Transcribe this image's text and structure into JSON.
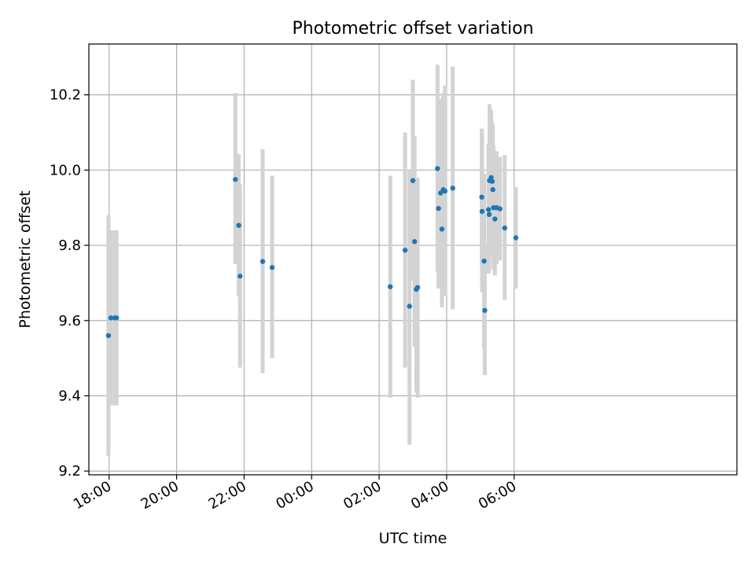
{
  "chart_data": {
    "type": "scatter",
    "title": "Photometric offset variation",
    "xlabel": "UTC time",
    "ylabel": "Photometric offset",
    "x_unit": "hours since 18:00 UTC",
    "xlim": [
      -0.6,
      18.6
    ],
    "ylim": [
      9.19,
      10.335
    ],
    "grid": true,
    "colors": {
      "points": "#1f77b4",
      "errorbars": "#d3d3d3",
      "grid": "#b0b0b0",
      "axes": "#000000"
    },
    "x_ticks": [
      {
        "value": 0,
        "label": "18:00"
      },
      {
        "value": 2,
        "label": "20:00"
      },
      {
        "value": 4,
        "label": "22:00"
      },
      {
        "value": 6,
        "label": "00:00"
      },
      {
        "value": 8,
        "label": "02:00"
      },
      {
        "value": 10,
        "label": "04:00"
      },
      {
        "value": 12,
        "label": "06:00"
      }
    ],
    "y_ticks": [
      {
        "value": 9.2,
        "label": "9.2"
      },
      {
        "value": 9.4,
        "label": "9.4"
      },
      {
        "value": 9.6,
        "label": "9.6"
      },
      {
        "value": 9.8,
        "label": "9.8"
      },
      {
        "value": 10.0,
        "label": "10.0"
      },
      {
        "value": 10.2,
        "label": "10.2"
      }
    ],
    "points": [
      {
        "x": -0.02,
        "y": 9.56,
        "lo": 9.24,
        "hi": 9.88
      },
      {
        "x": 0.05,
        "y": 9.607,
        "lo": 9.375,
        "hi": 9.84
      },
      {
        "x": 0.17,
        "y": 9.607,
        "lo": 9.375,
        "hi": 9.84
      },
      {
        "x": 0.22,
        "y": 9.607,
        "lo": 9.375,
        "hi": 9.84
      },
      {
        "x": 3.74,
        "y": 9.975,
        "lo": 9.75,
        "hi": 10.205
      },
      {
        "x": 3.84,
        "y": 9.853,
        "lo": 9.665,
        "hi": 10.042
      },
      {
        "x": 3.88,
        "y": 9.718,
        "lo": 9.475,
        "hi": 9.962
      },
      {
        "x": 4.55,
        "y": 9.757,
        "lo": 9.46,
        "hi": 10.055
      },
      {
        "x": 4.83,
        "y": 9.741,
        "lo": 9.5,
        "hi": 9.985
      },
      {
        "x": 8.33,
        "y": 9.69,
        "lo": 9.395,
        "hi": 9.985
      },
      {
        "x": 8.77,
        "y": 9.787,
        "lo": 9.475,
        "hi": 10.1
      },
      {
        "x": 8.9,
        "y": 9.638,
        "lo": 9.27,
        "hi": 10.0
      },
      {
        "x": 9.0,
        "y": 9.972,
        "lo": 9.705,
        "hi": 10.24
      },
      {
        "x": 9.05,
        "y": 9.81,
        "lo": 9.53,
        "hi": 10.09
      },
      {
        "x": 9.1,
        "y": 9.683,
        "lo": 9.41,
        "hi": 9.965
      },
      {
        "x": 9.14,
        "y": 9.688,
        "lo": 9.395,
        "hi": 9.98
      },
      {
        "x": 9.73,
        "y": 10.004,
        "lo": 9.73,
        "hi": 10.28
      },
      {
        "x": 9.76,
        "y": 9.898,
        "lo": 9.685,
        "hi": 10.115
      },
      {
        "x": 9.82,
        "y": 9.939,
        "lo": 9.69,
        "hi": 10.19
      },
      {
        "x": 9.86,
        "y": 9.843,
        "lo": 9.635,
        "hi": 10.05
      },
      {
        "x": 9.9,
        "y": 9.948,
        "lo": 9.69,
        "hi": 10.205
      },
      {
        "x": 9.95,
        "y": 9.944,
        "lo": 9.665,
        "hi": 10.225
      },
      {
        "x": 10.18,
        "y": 9.952,
        "lo": 9.63,
        "hi": 10.275
      },
      {
        "x": 11.04,
        "y": 9.928,
        "lo": 9.745,
        "hi": 10.11
      },
      {
        "x": 11.05,
        "y": 9.89,
        "lo": 9.675,
        "hi": 10.1
      },
      {
        "x": 11.11,
        "y": 9.758,
        "lo": 9.525,
        "hi": 9.99
      },
      {
        "x": 11.13,
        "y": 9.627,
        "lo": 9.455,
        "hi": 9.8
      },
      {
        "x": 11.24,
        "y": 9.895,
        "lo": 9.725,
        "hi": 10.07
      },
      {
        "x": 11.26,
        "y": 9.882,
        "lo": 9.73,
        "hi": 10.035
      },
      {
        "x": 11.27,
        "y": 9.972,
        "lo": 9.77,
        "hi": 10.175
      },
      {
        "x": 11.32,
        "y": 9.98,
        "lo": 9.805,
        "hi": 10.16
      },
      {
        "x": 11.35,
        "y": 9.97,
        "lo": 9.81,
        "hi": 10.13
      },
      {
        "x": 11.37,
        "y": 9.948,
        "lo": 9.775,
        "hi": 10.12
      },
      {
        "x": 11.39,
        "y": 9.9,
        "lo": 9.735,
        "hi": 10.065
      },
      {
        "x": 11.43,
        "y": 9.87,
        "lo": 9.72,
        "hi": 10.03
      },
      {
        "x": 11.48,
        "y": 9.9,
        "lo": 9.75,
        "hi": 10.05
      },
      {
        "x": 11.58,
        "y": 9.897,
        "lo": 9.76,
        "hi": 10.035
      },
      {
        "x": 11.72,
        "y": 9.846,
        "lo": 9.655,
        "hi": 10.04
      },
      {
        "x": 12.05,
        "y": 9.82,
        "lo": 9.685,
        "hi": 9.955
      }
    ]
  }
}
